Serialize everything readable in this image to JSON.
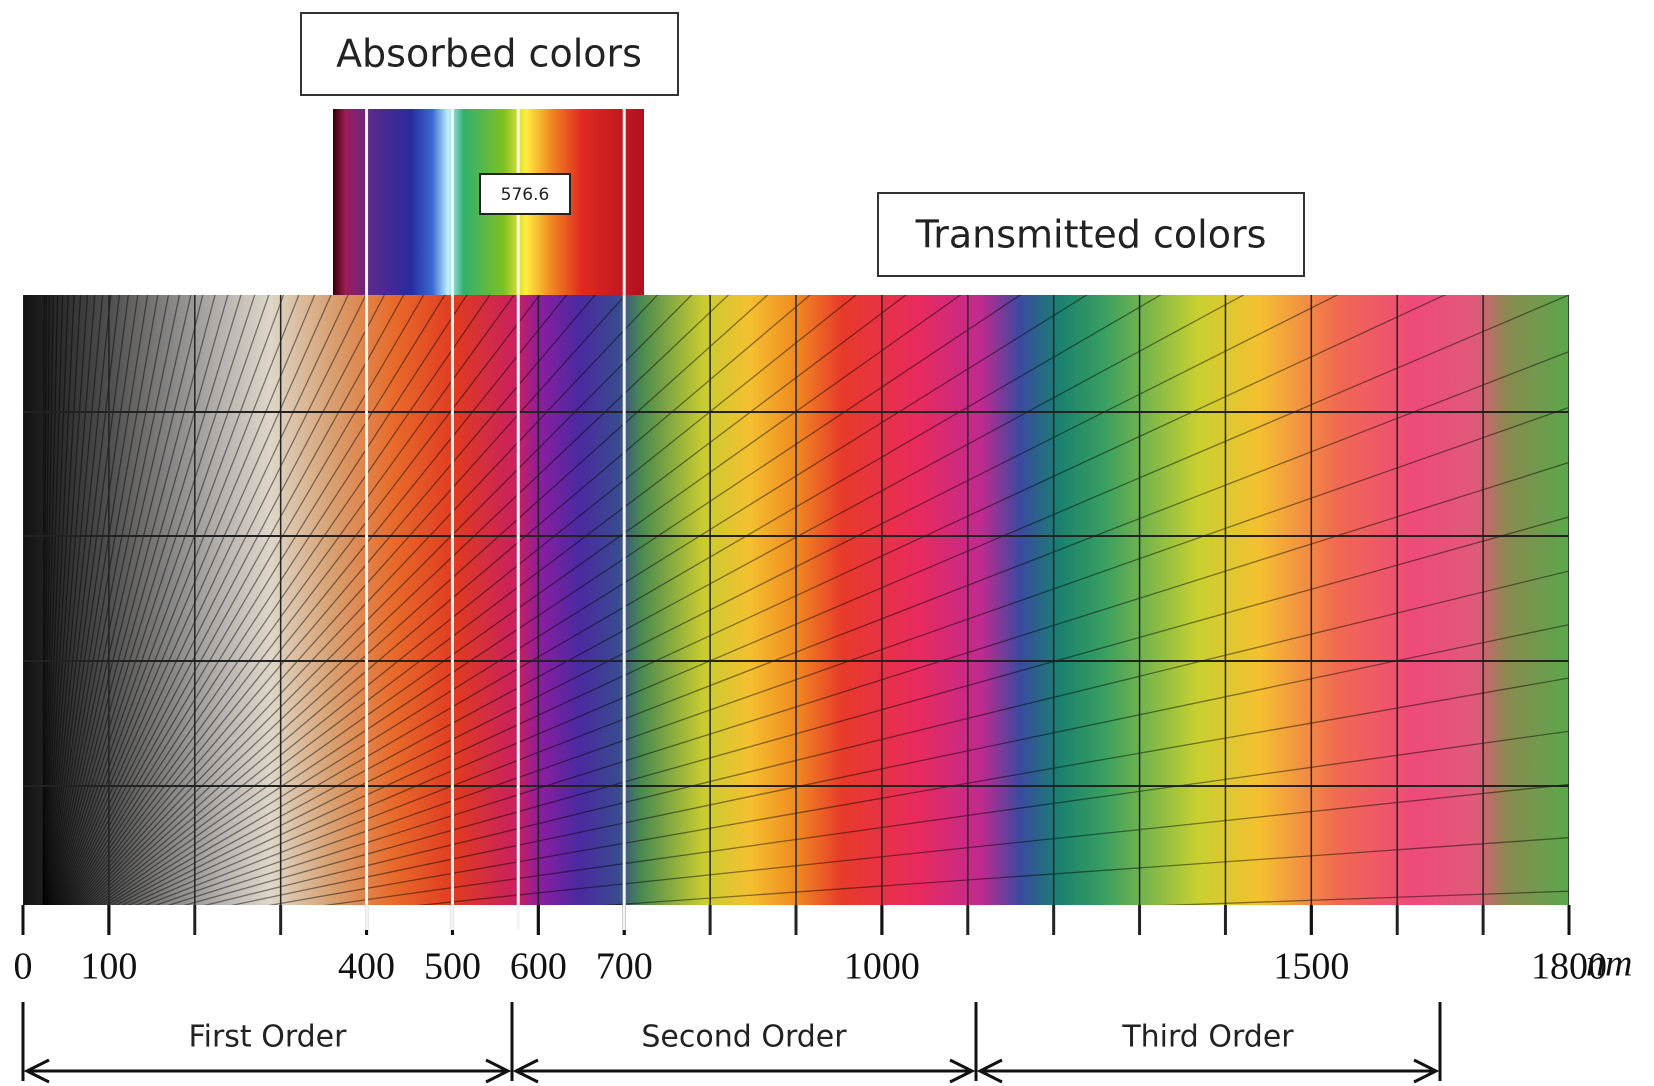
{
  "labels": {
    "absorbed": "Absorbed colors",
    "transmitted": "Transmitted colors",
    "wavelength": 576.6
  },
  "axis": {
    "xlim": [
      0,
      1800
    ],
    "xticks": [
      0,
      100,
      400,
      500,
      600,
      700,
      1000,
      1500,
      1800
    ],
    "unit": "nm"
  },
  "orders": [
    "First Order",
    "Second Order",
    "Third Order"
  ]
}
